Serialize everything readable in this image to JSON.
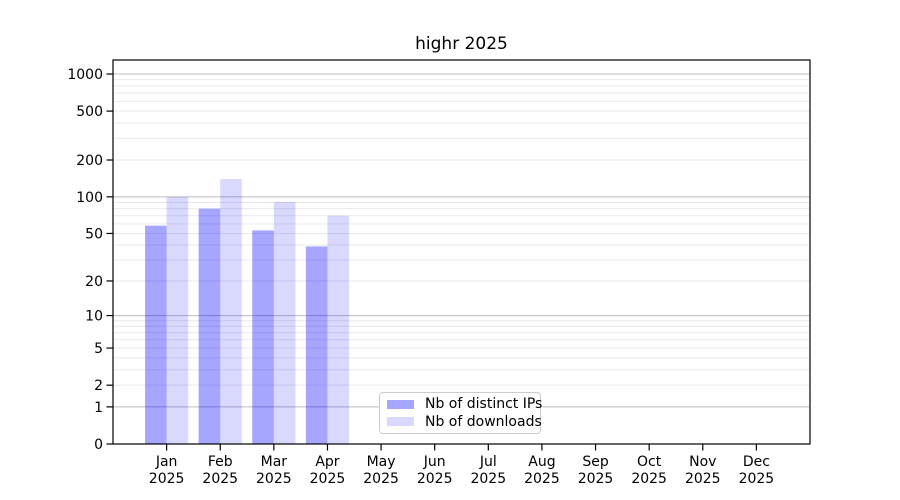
{
  "chart_data": {
    "type": "bar",
    "title": "highr 2025",
    "year": "2025",
    "categories": [
      "Jan",
      "Feb",
      "Mar",
      "Apr",
      "May",
      "Jun",
      "Jul",
      "Aug",
      "Sep",
      "Oct",
      "Nov",
      "Dec"
    ],
    "series": [
      {
        "name": "Nb of distinct IPs",
        "color": "#0000ff",
        "alpha": 0.35,
        "values": [
          58,
          80,
          53,
          39,
          0,
          0,
          0,
          0,
          0,
          0,
          0,
          0
        ]
      },
      {
        "name": "Nb of downloads",
        "color": "#0000ff",
        "alpha": 0.15,
        "values": [
          100,
          140,
          91,
          70,
          0,
          0,
          0,
          0,
          0,
          0,
          0,
          0
        ]
      }
    ],
    "yticks": [
      0,
      1,
      2,
      5,
      10,
      20,
      50,
      100,
      200,
      500,
      1000
    ],
    "ylabel": "",
    "xlabel": "",
    "scale": "log1p",
    "ylim": [
      0,
      1300
    ],
    "grid": true,
    "legend_position": "lower-center",
    "colors": {
      "axis": "#000000",
      "grid_major": "#bcbcbc",
      "grid_minor": "#e9e9e9",
      "legend_border": "#cccccc",
      "background": "#ffffff"
    }
  }
}
